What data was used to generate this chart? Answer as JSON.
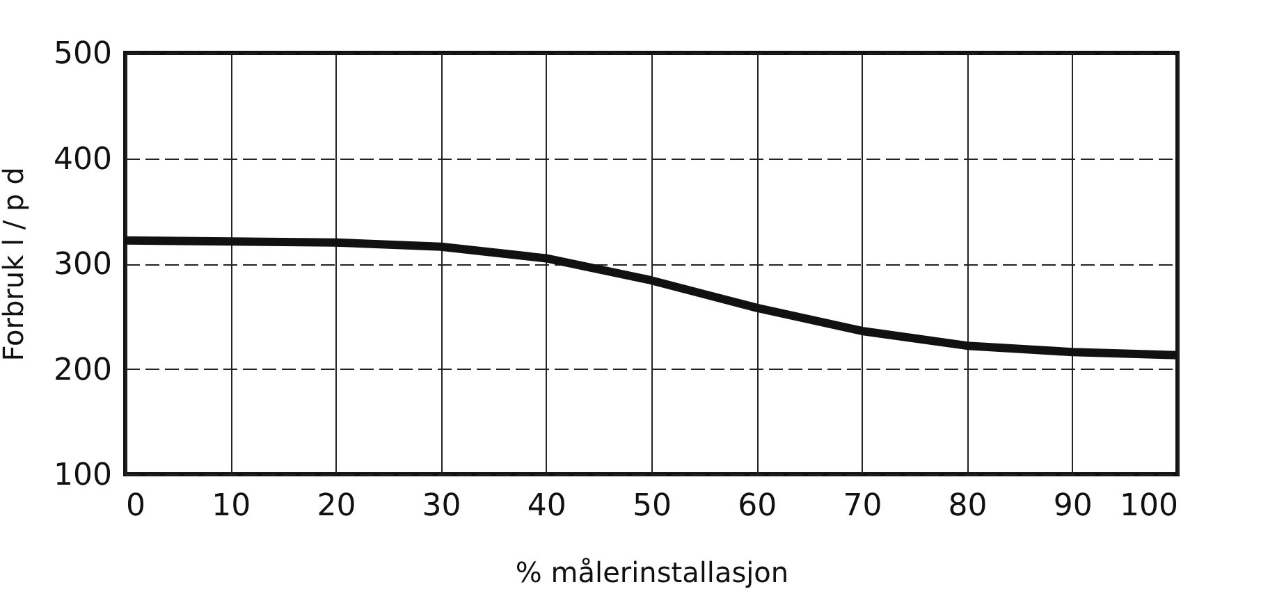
{
  "chart_data": {
    "type": "line",
    "xlabel": "% målerinstallasjon",
    "ylabel": "Forbruk l / p d",
    "x": [
      0,
      10,
      20,
      30,
      40,
      50,
      60,
      70,
      80,
      90,
      100
    ],
    "series": [
      {
        "color": "#111111",
        "values": [
          322,
          321,
          320,
          316,
          305,
          284,
          258,
          236,
          222,
          216,
          213
        ]
      }
    ],
    "xlim": [
      0,
      100
    ],
    "xticks": [
      0,
      10,
      20,
      30,
      40,
      50,
      60,
      70,
      80,
      90,
      100
    ],
    "ylim": [
      100,
      500
    ],
    "yticks": [
      100,
      200,
      300,
      400,
      500
    ],
    "grid": true,
    "line_style": "solid",
    "marker": "none"
  }
}
